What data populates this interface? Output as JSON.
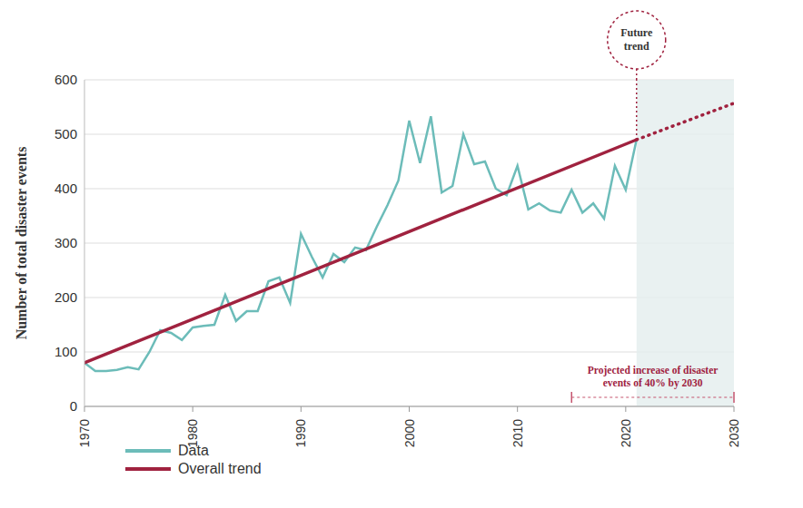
{
  "chart_data": {
    "type": "line",
    "y_label": "Number of total disaster events",
    "xlim": [
      1970,
      2030
    ],
    "xticks": [
      1970,
      1980,
      1990,
      2000,
      2010,
      2020,
      2030
    ],
    "ylim": [
      0,
      600
    ],
    "yticks": [
      0,
      100,
      200,
      300,
      400,
      500,
      600
    ],
    "grid": true,
    "legend": "lower left",
    "series": [
      {
        "name": "Data",
        "color": "#6cbcb9",
        "line_style": "solid",
        "x": [
          1970,
          1971,
          1972,
          1973,
          1974,
          1975,
          1976,
          1977,
          1978,
          1979,
          1980,
          1981,
          1982,
          1983,
          1984,
          1985,
          1986,
          1987,
          1988,
          1989,
          1990,
          1991,
          1992,
          1993,
          1994,
          1995,
          1996,
          1997,
          1998,
          1999,
          2000,
          2001,
          2002,
          2003,
          2004,
          2005,
          2006,
          2007,
          2008,
          2009,
          2010,
          2011,
          2012,
          2013,
          2014,
          2015,
          2016,
          2017,
          2018,
          2019,
          2020,
          2021
        ],
        "values": [
          80,
          65,
          65,
          67,
          72,
          68,
          100,
          140,
          135,
          122,
          145,
          148,
          150,
          205,
          157,
          175,
          175,
          230,
          237,
          190,
          317,
          275,
          237,
          280,
          265,
          292,
          287,
          330,
          370,
          415,
          525,
          447,
          533,
          393,
          405,
          500,
          445,
          450,
          400,
          388,
          442,
          362,
          373,
          360,
          356,
          398,
          356,
          373,
          345,
          442,
          398,
          490
        ]
      },
      {
        "name": "Overall trend",
        "color": "#a0223f",
        "line_style": "solid",
        "x": [
          1970,
          2021
        ],
        "values": [
          80,
          490
        ]
      },
      {
        "color": "#a0223f",
        "line_style": "dotted",
        "x": [
          2021,
          2030
        ],
        "values": [
          490,
          557
        ]
      }
    ],
    "future_region": [
      2021,
      2030
    ],
    "annotations": [
      {
        "text": [
          "Future",
          "trend"
        ],
        "x": 2021
      },
      {
        "text": [
          "Projected increase of disaster",
          "events of 40% by 2030"
        ],
        "x": [
          2015,
          2030
        ]
      }
    ]
  }
}
